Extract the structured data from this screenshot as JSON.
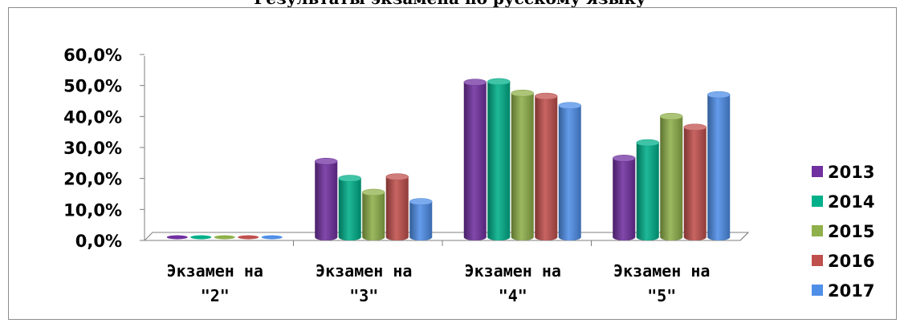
{
  "title": "Результаты экзамена по русскому языку",
  "chart_data": {
    "type": "bar",
    "categories": [
      "Экзамен на \"2\"",
      "Экзамен на \"3\"",
      "Экзамен на \"4\"",
      "Экзамен на \"5\""
    ],
    "category_lines": [
      [
        "Экзамен на",
        "\"2\""
      ],
      [
        "Экзамен на",
        "\"3\""
      ],
      [
        "Экзамен на",
        "\"4\""
      ],
      [
        "Экзамен на",
        "\"5\""
      ]
    ],
    "series": [
      {
        "name": "2013",
        "color": "#7030a0",
        "values": [
          0.0,
          24.5,
          50.0,
          25.5
        ]
      },
      {
        "name": "2014",
        "color": "#00b08a",
        "values": [
          0.0,
          19.0,
          50.2,
          30.5
        ]
      },
      {
        "name": "2015",
        "color": "#8fb04a",
        "values": [
          0.0,
          14.5,
          46.5,
          39.0
        ]
      },
      {
        "name": "2016",
        "color": "#c0504d",
        "values": [
          0.0,
          19.5,
          45.5,
          35.5
        ]
      },
      {
        "name": "2017",
        "color": "#4f8fe8",
        "values": [
          0.0,
          11.5,
          42.5,
          46.0
        ]
      }
    ],
    "ylim": [
      0,
      60
    ],
    "yticks": [
      "0,0%",
      "10,0%",
      "20,0%",
      "30,0%",
      "40,0%",
      "50,0%",
      "60,0%"
    ],
    "xlabel": "",
    "ylabel": "",
    "legend": "right",
    "grid": false
  }
}
